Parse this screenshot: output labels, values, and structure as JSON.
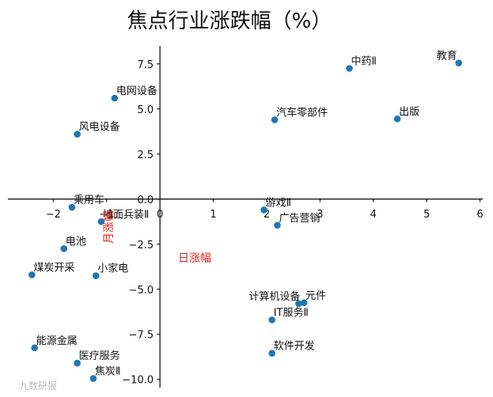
{
  "chart_data": {
    "type": "scatter",
    "title": "焦点行业涨跌幅（%）",
    "xlabel": "日涨幅",
    "ylabel": "月涨幅",
    "label_color": "#e0211b",
    "point_color": "#1f77b4",
    "xlim": [
      -2.85,
      6.05
    ],
    "ylim": [
      -10.45,
      8.5
    ],
    "xticks": [
      -2,
      -1,
      0,
      1,
      2,
      3,
      4,
      5,
      6
    ],
    "yticks": [
      -10.0,
      -7.5,
      -5.0,
      -2.5,
      0.0,
      2.5,
      5.0,
      7.5
    ],
    "xtick_labels": [
      "−2",
      "−1",
      "0",
      "1",
      "2",
      "3",
      "4",
      "5",
      "6"
    ],
    "ytick_labels": [
      "−10.0",
      "−7.5",
      "−5.0",
      "−2.5",
      "0.0",
      "2.5",
      "5.0",
      "7.5"
    ],
    "points": [
      {
        "label": "教育",
        "x": 5.6,
        "y": 7.55
      },
      {
        "label": "中药Ⅱ",
        "x": 3.55,
        "y": 7.25
      },
      {
        "label": "汽车零部件",
        "x": 2.15,
        "y": 4.4
      },
      {
        "label": "出版",
        "x": 4.45,
        "y": 4.45
      },
      {
        "label": "电网设备",
        "x": -0.85,
        "y": 5.6
      },
      {
        "label": "风电设备",
        "x": -1.55,
        "y": 3.6
      },
      {
        "label": "乘用车",
        "x": -1.65,
        "y": -0.45
      },
      {
        "label": "地面兵装Ⅱ",
        "x": -1.1,
        "y": -1.25
      },
      {
        "label": "游戏Ⅱ",
        "x": 1.95,
        "y": -0.6
      },
      {
        "label": "广告营销",
        "x": 2.2,
        "y": -1.45
      },
      {
        "label": "电池",
        "x": -1.8,
        "y": -2.75
      },
      {
        "label": "煤炭开采",
        "x": -2.4,
        "y": -4.2
      },
      {
        "label": "小家电",
        "x": -1.2,
        "y": -4.25
      },
      {
        "label": "计算机设备",
        "x": 2.6,
        "y": -5.8
      },
      {
        "label": "元件",
        "x": 2.7,
        "y": -5.75
      },
      {
        "label": "IT服务Ⅱ",
        "x": 2.1,
        "y": -6.7
      },
      {
        "label": "软件开发",
        "x": 2.1,
        "y": -8.55
      },
      {
        "label": "能源金属",
        "x": -2.35,
        "y": -8.25
      },
      {
        "label": "医疗服务",
        "x": -1.55,
        "y": -9.1
      },
      {
        "label": "焦炭Ⅱ",
        "x": -1.25,
        "y": -9.95
      }
    ],
    "grid": false
  },
  "watermark": "九数研报"
}
